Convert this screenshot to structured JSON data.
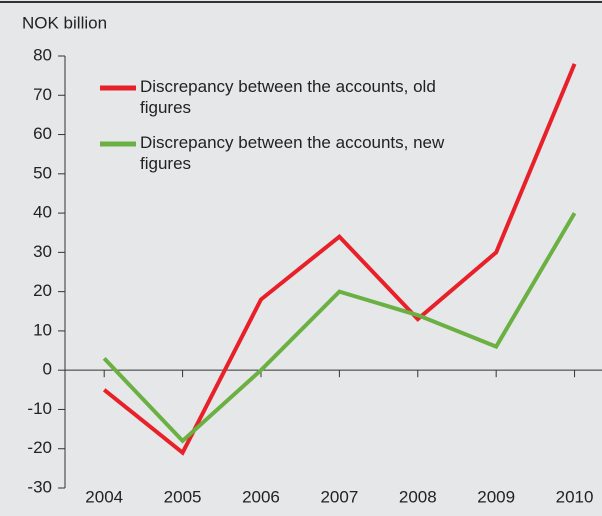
{
  "chart_data": {
    "type": "line",
    "ylabel": "NOK billion",
    "x": [
      2004,
      2005,
      2006,
      2007,
      2008,
      2009,
      2010
    ],
    "xlim": [
      2003.5,
      2010.35
    ],
    "xticks": [
      2004,
      2005,
      2006,
      2007,
      2008,
      2009,
      2010
    ],
    "ylim": [
      -30,
      80
    ],
    "yticks": [
      -30,
      -20,
      -10,
      0,
      10,
      20,
      30,
      40,
      50,
      60,
      70,
      80
    ],
    "series": [
      {
        "name": "Discrepancy between the accounts, old figures",
        "color": "#e8202a",
        "values": [
          -5,
          -21,
          18,
          34,
          13,
          30,
          78
        ]
      },
      {
        "name": "Discrepancy between the accounts, new figures",
        "color": "#6ab042",
        "values": [
          3,
          -18,
          0,
          20,
          14,
          6,
          40
        ]
      }
    ]
  }
}
